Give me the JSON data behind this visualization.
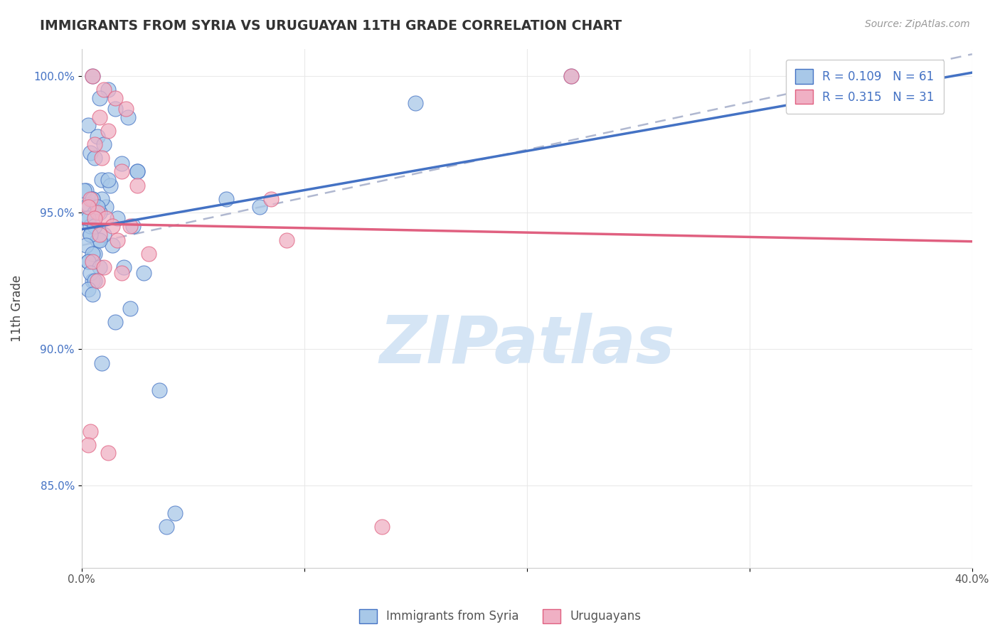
{
  "title": "IMMIGRANTS FROM SYRIA VS URUGUAYAN 11TH GRADE CORRELATION CHART",
  "source_text": "Source: ZipAtlas.com",
  "ylabel": "11th Grade",
  "x_min": 0.0,
  "x_max": 40.0,
  "y_min": 82.0,
  "y_max": 101.0,
  "legend_label1": "R = 0.109   N = 61",
  "legend_label2": "R = 0.315   N = 31",
  "legend_bottom_label1": "Immigrants from Syria",
  "legend_bottom_label2": "Uruguayans",
  "color_blue": "#a8c8e8",
  "color_pink": "#f0b0c4",
  "color_blue_line": "#4472c4",
  "color_pink_line": "#e06080",
  "color_dashed": "#b0b8d0",
  "watermark_text": "ZIPatlas",
  "watermark_color": "#d5e5f5",
  "background_color": "#ffffff",
  "grid_color": "#e8e8e8",
  "blue_scatter_x": [
    0.5,
    1.2,
    0.8,
    1.5,
    2.1,
    0.3,
    0.7,
    1.0,
    0.4,
    0.6,
    1.8,
    2.5,
    0.9,
    1.3,
    0.2,
    0.5,
    1.1,
    0.8,
    1.6,
    2.3,
    0.4,
    0.7,
    1.4,
    0.6,
    0.3,
    1.9,
    2.8,
    0.5,
    0.9,
    1.2,
    0.1,
    0.3,
    0.6,
    0.2,
    0.4,
    1.0,
    0.8,
    0.5,
    0.7,
    0.3,
    0.6,
    0.4,
    0.2,
    0.5,
    0.3,
    0.8,
    0.4,
    0.6,
    0.3,
    0.5,
    3.5,
    4.2,
    3.8,
    2.2,
    6.5,
    8.0,
    15.0,
    22.0,
    2.5,
    1.5,
    0.9
  ],
  "blue_scatter_y": [
    100.0,
    99.5,
    99.2,
    98.8,
    98.5,
    98.2,
    97.8,
    97.5,
    97.2,
    97.0,
    96.8,
    96.5,
    96.2,
    96.0,
    95.8,
    95.5,
    95.2,
    95.0,
    94.8,
    94.5,
    94.2,
    94.0,
    93.8,
    93.5,
    93.2,
    93.0,
    92.8,
    92.5,
    95.5,
    96.2,
    95.8,
    95.3,
    95.0,
    94.8,
    94.5,
    94.2,
    94.0,
    95.5,
    95.2,
    94.8,
    94.5,
    94.2,
    93.8,
    93.5,
    93.2,
    93.0,
    92.8,
    92.5,
    92.2,
    92.0,
    88.5,
    84.0,
    83.5,
    91.5,
    95.5,
    95.2,
    99.0,
    100.0,
    96.5,
    91.0,
    89.5
  ],
  "pink_scatter_x": [
    0.5,
    1.0,
    1.5,
    2.0,
    0.8,
    1.2,
    0.6,
    0.9,
    1.8,
    2.5,
    0.4,
    0.7,
    1.1,
    2.2,
    0.3,
    0.6,
    1.4,
    0.8,
    1.6,
    3.0,
    0.5,
    1.0,
    1.8,
    0.7,
    0.4,
    0.3,
    1.2,
    8.5,
    9.2,
    13.5,
    22.0
  ],
  "pink_scatter_y": [
    100.0,
    99.5,
    99.2,
    98.8,
    98.5,
    98.0,
    97.5,
    97.0,
    96.5,
    96.0,
    95.5,
    95.0,
    94.8,
    94.5,
    95.2,
    94.8,
    94.5,
    94.2,
    94.0,
    93.5,
    93.2,
    93.0,
    92.8,
    92.5,
    87.0,
    86.5,
    86.2,
    95.5,
    94.0,
    83.5,
    100.0
  ],
  "dashed_x0": 0.0,
  "dashed_y0": 93.8,
  "dashed_x1": 40.0,
  "dashed_y1": 100.8
}
